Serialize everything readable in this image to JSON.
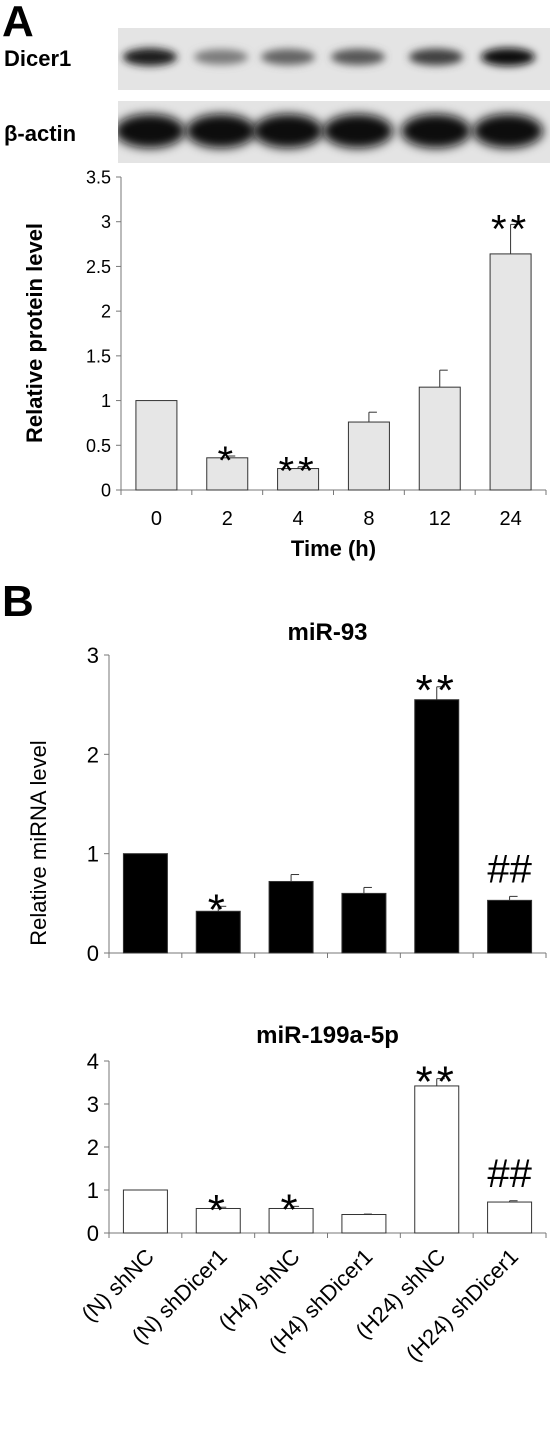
{
  "panel_a": {
    "letter": "A",
    "blot_dicer1_label": "Dicer1",
    "blot_actin_label": "β-actin",
    "dicer1_band_intensity": [
      0.95,
      0.55,
      0.65,
      0.7,
      0.8,
      1.0
    ],
    "actin_band_intensity": [
      1.0,
      1.0,
      1.0,
      1.0,
      1.0,
      1.0
    ]
  },
  "panel_b": {
    "letter": "B"
  },
  "chart_data": [
    {
      "type": "bar",
      "title": "",
      "xlabel": "Time (h)",
      "ylabel": "Relative protein level",
      "categories": [
        "0",
        "2",
        "4",
        "8",
        "12",
        "24"
      ],
      "values": [
        1.0,
        0.36,
        0.24,
        0.76,
        1.15,
        2.64
      ],
      "errors": [
        0,
        0.02,
        0.02,
        0.11,
        0.19,
        0.33
      ],
      "significance": [
        "",
        "*",
        "**",
        "",
        "",
        "**"
      ],
      "ylim": [
        0,
        3.5
      ],
      "yticks": [
        "0",
        "0.5",
        "1",
        "1.5",
        "2",
        "2.5",
        "3",
        "3.5"
      ],
      "bar_color": "#e6e6e6",
      "grid": false
    },
    {
      "type": "bar",
      "title": "miR-93",
      "xlabel": "",
      "ylabel": "Relative miRNA level",
      "categories": [
        "(N) shNC",
        "(N) shDicer1",
        "(H4) shNC",
        "(H4) shDicer1",
        "(H24) shNC",
        "(H24) shDicer1"
      ],
      "values": [
        1.0,
        0.42,
        0.72,
        0.6,
        2.55,
        0.53
      ],
      "errors": [
        0,
        0.05,
        0.07,
        0.06,
        0.13,
        0.04
      ],
      "significance": [
        "",
        "*",
        "",
        "",
        "**",
        "##"
      ],
      "ylim": [
        0,
        3
      ],
      "yticks": [
        "0",
        "1",
        "2",
        "3"
      ],
      "bar_color": "#000000",
      "grid": false
    },
    {
      "type": "bar",
      "title": "miR-199a-5p",
      "xlabel": "",
      "ylabel": "Relative miRNA level",
      "categories": [
        "(N) shNC",
        "(N) shDicer1",
        "(H4) shNC",
        "(H4) shDicer1",
        "(H24) shNC",
        "(H24) shDicer1"
      ],
      "values": [
        1.0,
        0.57,
        0.57,
        0.43,
        3.42,
        0.72
      ],
      "errors": [
        0,
        0.03,
        0.05,
        0.01,
        0.17,
        0.03
      ],
      "significance": [
        "",
        "*",
        "*",
        "",
        "**",
        "##"
      ],
      "ylim": [
        0,
        4
      ],
      "yticks": [
        "0",
        "1",
        "2",
        "3",
        "4"
      ],
      "bar_color": "#ffffff",
      "grid": false
    }
  ]
}
